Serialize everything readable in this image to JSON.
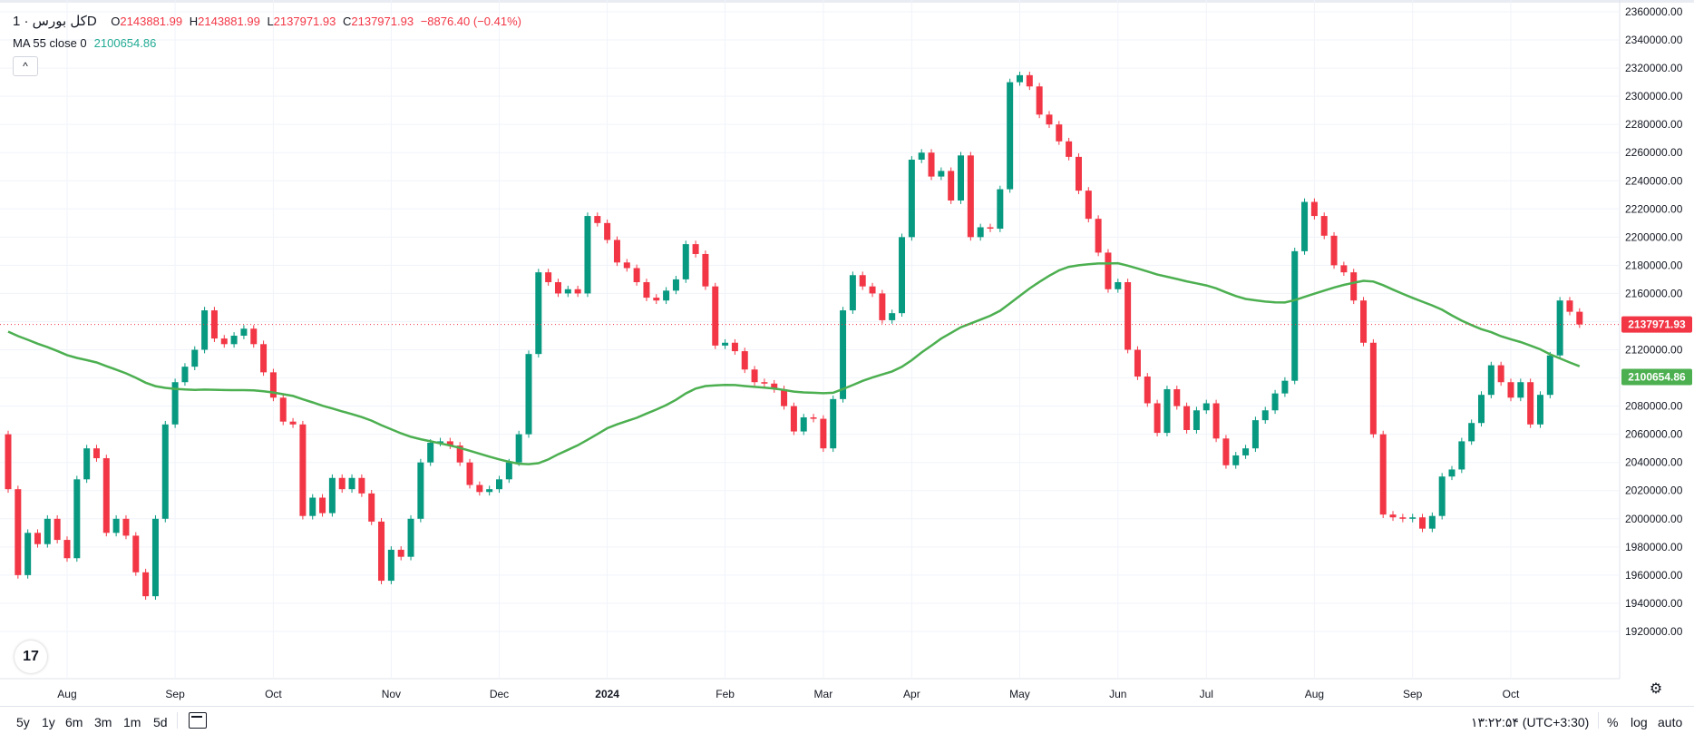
{
  "legend": {
    "title": "کل بورس · 1D",
    "open_label": "O",
    "open": "2143881.99",
    "high_label": "H",
    "high": "2143881.99",
    "low_label": "L",
    "low": "2137971.93",
    "close_label": "C",
    "close": "2137971.93",
    "change": "−8876.40 (−0.41%)",
    "ma_label": "MA 55 close 0",
    "ma_value": "2100654.86"
  },
  "collapse_label": "^",
  "logo": "17",
  "price_tag": "2137971.93",
  "ma_tag": "2100654.86",
  "bottom_bar": {
    "ranges": [
      "5y",
      "1y",
      "6m",
      "3m",
      "1m",
      "5d"
    ],
    "clock": "۱۳:۲۲:۵۴ (UTC+3:30)",
    "percent": "%",
    "log": "log",
    "auto": "auto"
  },
  "colors": {
    "up": "#089981",
    "down": "#f23645",
    "ma": "#4caf50",
    "grid": "#f0f3fa",
    "text": "#131722"
  },
  "chart_data": {
    "type": "candlestick",
    "title": "کل بورس",
    "interval": "1D",
    "ylim": [
      1900000,
      2360000
    ],
    "y_ticks": [
      1920000,
      1940000,
      1960000,
      1980000,
      2000000,
      2020000,
      2040000,
      2060000,
      2080000,
      2100000,
      2120000,
      2140000,
      2160000,
      2180000,
      2200000,
      2220000,
      2240000,
      2260000,
      2280000,
      2300000,
      2320000,
      2340000,
      2360000
    ],
    "y_tick_labels": [
      "1920000.00",
      "1940000.00",
      "1960000.00",
      "1980000.00",
      "2000000.00",
      "2020000.00",
      "2040000.00",
      "2060000.00",
      "2080000.00",
      "2100000.00",
      "2120000.00",
      "2140000.00",
      "2160000.00",
      "2180000.00",
      "2200000.00",
      "2220000.00",
      "2240000.00",
      "2260000.00",
      "2280000.00",
      "2300000.00",
      "2320000.00",
      "2340000.00",
      "2360000.00"
    ],
    "x_range": [
      0,
      156
    ],
    "x_ticks": [
      {
        "label": "Aug",
        "i": 6,
        "bold": false
      },
      {
        "label": "Sep",
        "i": 17,
        "bold": false
      },
      {
        "label": "Oct",
        "i": 27,
        "bold": false
      },
      {
        "label": "Nov",
        "i": 39,
        "bold": false
      },
      {
        "label": "Dec",
        "i": 50,
        "bold": false
      },
      {
        "label": "2024",
        "i": 61,
        "bold": true
      },
      {
        "label": "Feb",
        "i": 73,
        "bold": false
      },
      {
        "label": "Mar",
        "i": 83,
        "bold": false
      },
      {
        "label": "Apr",
        "i": 92,
        "bold": false
      },
      {
        "label": "May",
        "i": 103,
        "bold": false
      },
      {
        "label": "Jun",
        "i": 113,
        "bold": false
      },
      {
        "label": "Jul",
        "i": 122,
        "bold": false
      },
      {
        "label": "Aug",
        "i": 133,
        "bold": false
      },
      {
        "label": "Sep",
        "i": 143,
        "bold": false
      },
      {
        "label": "Oct",
        "i": 153,
        "bold": false
      }
    ],
    "last_close": 2137971.93,
    "ma_last": 2100654.86,
    "closes": [
      2021000,
      1960000,
      1990000,
      1982000,
      2000000,
      1985000,
      1972000,
      2028000,
      2050000,
      2043000,
      1990000,
      2000000,
      1988000,
      1962000,
      1945000,
      2000000,
      2067000,
      2097000,
      2108000,
      2120000,
      2148000,
      2128000,
      2124000,
      2130000,
      2135000,
      2124000,
      2104000,
      2086000,
      2069000,
      2067000,
      2002000,
      2015000,
      2004000,
      2029000,
      2021000,
      2029000,
      2018000,
      1998000,
      1956000,
      1978000,
      1973000,
      2000000,
      2040000,
      2054000,
      2055000,
      2052000,
      2040000,
      2024000,
      2019000,
      2021000,
      2028000,
      2040000,
      2060000,
      2117000,
      2175000,
      2168000,
      2160000,
      2163000,
      2160000,
      2215000,
      2210000,
      2198000,
      2182000,
      2178000,
      2168000,
      2157000,
      2155000,
      2162000,
      2170000,
      2195000,
      2188000,
      2165000,
      2123000,
      2125000,
      2119000,
      2106000,
      2097000,
      2096000,
      2092000,
      2080000,
      2062000,
      2072000,
      2071000,
      2050000,
      2085000,
      2148000,
      2173000,
      2165000,
      2160000,
      2141000,
      2146000,
      2200000,
      2255000,
      2260000,
      2243000,
      2247000,
      2226000,
      2258000,
      2200000,
      2207000,
      2206000,
      2234000,
      2310000,
      2315000,
      2307000,
      2287000,
      2280000,
      2268000,
      2257000,
      2233000,
      2213000,
      2189000,
      2163000,
      2168000,
      2120000,
      2101000,
      2082000,
      2061000,
      2092000,
      2080000,
      2063000,
      2077000,
      2082000,
      2057000,
      2038000,
      2045000,
      2050000,
      2070000,
      2077000,
      2089000,
      2098000,
      2190000,
      2225000,
      2215000,
      2201000,
      2180000,
      2175000,
      2155000,
      2125000,
      2060000,
      2003000,
      2001000,
      2000000,
      2001000,
      1993000,
      2002000,
      2030000,
      2035000,
      2055000,
      2068000,
      2088000,
      2109000,
      2097000,
      2086000,
      2097000,
      2067000,
      2088000,
      2116000,
      2155000,
      2147000,
      2138000
    ]
  }
}
